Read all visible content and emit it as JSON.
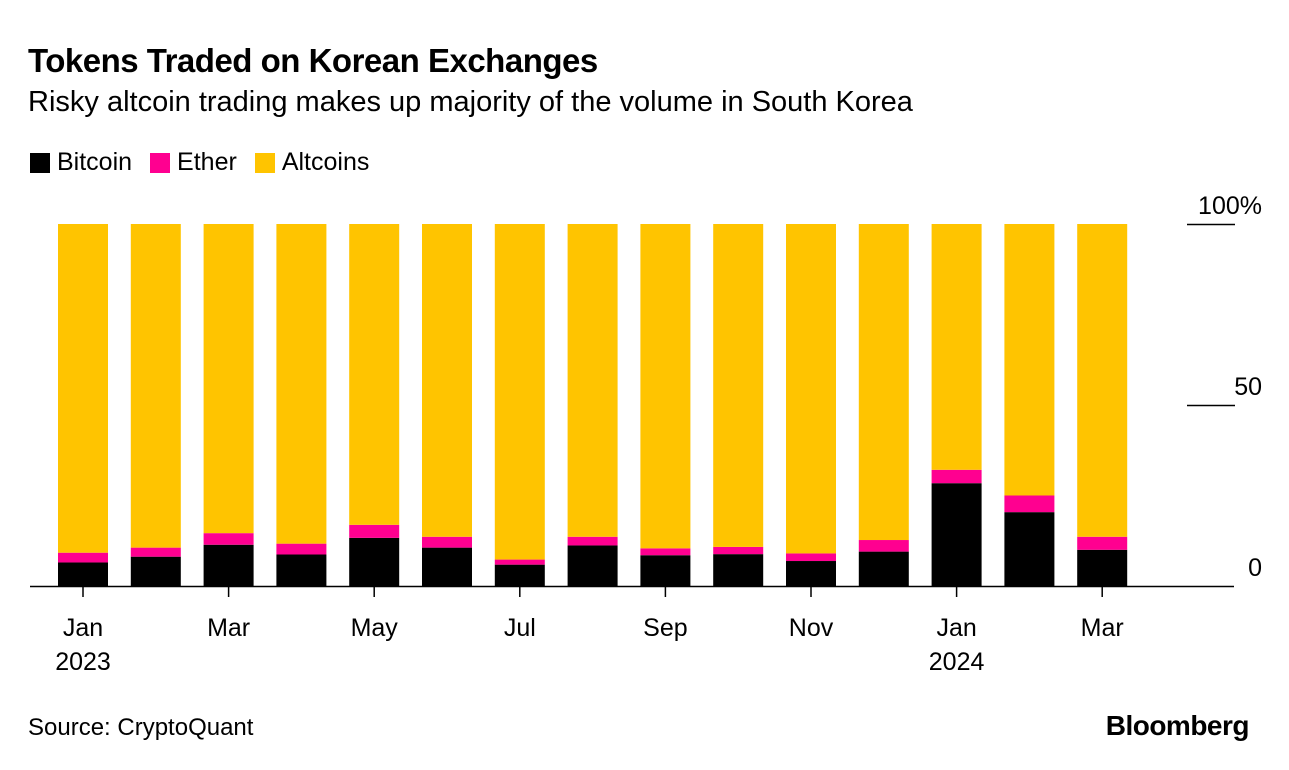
{
  "title": "Tokens Traded on Korean Exchanges",
  "subtitle": "Risky altcoin trading makes up majority of the volume in South Korea",
  "source": "Source: CryptoQuant",
  "logo": "Bloomberg",
  "chart_data": {
    "type": "bar",
    "stacked": true,
    "categories": [
      "Jan 2023",
      "Feb 2023",
      "Mar 2023",
      "Apr 2023",
      "May 2023",
      "Jun 2023",
      "Jul 2023",
      "Aug 2023",
      "Sep 2023",
      "Oct 2023",
      "Nov 2023",
      "Dec 2023",
      "Jan 2024",
      "Feb 2024",
      "Mar 2024"
    ],
    "x_tick_labels": [
      {
        "index": 0,
        "line1": "Jan",
        "line2": "2023"
      },
      {
        "index": 2,
        "line1": "Mar",
        "line2": ""
      },
      {
        "index": 4,
        "line1": "May",
        "line2": ""
      },
      {
        "index": 6,
        "line1": "Jul",
        "line2": ""
      },
      {
        "index": 8,
        "line1": "Sep",
        "line2": ""
      },
      {
        "index": 10,
        "line1": "Nov",
        "line2": ""
      },
      {
        "index": 12,
        "line1": "Jan",
        "line2": "2024"
      },
      {
        "index": 14,
        "line1": "Mar",
        "line2": ""
      }
    ],
    "series": [
      {
        "name": "Bitcoin",
        "color": "#000000",
        "values": [
          6.5,
          8.1,
          11.4,
          8.7,
          13.3,
          10.6,
          5.9,
          11.2,
          8.5,
          8.8,
          6.9,
          9.5,
          28.4,
          20.4,
          10.0
        ]
      },
      {
        "name": "Ether",
        "color": "#ff0090",
        "values": [
          2.7,
          2.5,
          3.2,
          3.0,
          3.6,
          3.0,
          1.4,
          2.4,
          1.9,
          2.0,
          2.1,
          3.2,
          3.7,
          4.6,
          3.6
        ]
      },
      {
        "name": "Altcoins",
        "color": "#ffc400",
        "values": [
          90.8,
          89.4,
          85.4,
          88.3,
          83.1,
          86.4,
          92.7,
          86.4,
          89.6,
          89.2,
          91.0,
          87.3,
          67.9,
          75.0,
          86.4
        ]
      }
    ],
    "ylim": [
      0,
      100
    ],
    "y_ticks": [
      {
        "value": 0,
        "label": "0"
      },
      {
        "value": 50,
        "label": "50"
      },
      {
        "value": 100,
        "label": "100%"
      }
    ],
    "y_axis_position": "right",
    "grid": false,
    "legend_position": "top-left"
  }
}
